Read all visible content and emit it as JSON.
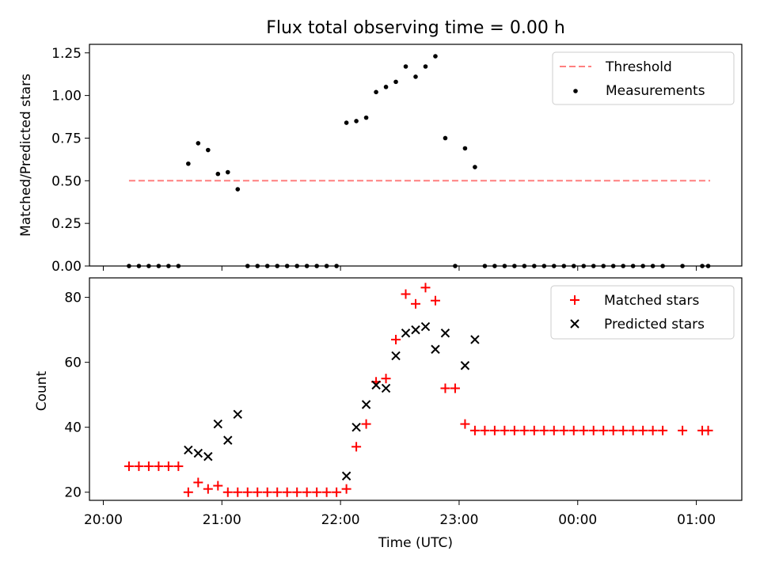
{
  "chart_data": [
    {
      "type": "scatter",
      "title": "Flux total observing time = 0.00 h",
      "xlabel": "",
      "ylabel": "Matched/Predicted stars",
      "ylim": [
        0,
        1.3
      ],
      "yticks": [
        "0.00",
        "0.25",
        "0.50",
        "0.75",
        "1.00",
        "1.25"
      ],
      "legend_position": "upper right",
      "threshold": {
        "name": "Threshold",
        "value": 0.5,
        "x_start": "20:13",
        "x_end": "01:07",
        "color": "#ff7f7f",
        "style": "dashed"
      },
      "series": [
        {
          "name": "Measurements",
          "color": "#000000",
          "marker": "dot",
          "points": [
            [
              "20:13",
              0.0
            ],
            [
              "20:18",
              0.0
            ],
            [
              "20:23",
              0.0
            ],
            [
              "20:28",
              0.0
            ],
            [
              "20:33",
              0.0
            ],
            [
              "20:38",
              0.0
            ],
            [
              "20:43",
              0.6
            ],
            [
              "20:48",
              0.72
            ],
            [
              "20:53",
              0.68
            ],
            [
              "20:58",
              0.54
            ],
            [
              "21:03",
              0.55
            ],
            [
              "21:08",
              0.45
            ],
            [
              "21:13",
              0.0
            ],
            [
              "21:18",
              0.0
            ],
            [
              "21:23",
              0.0
            ],
            [
              "21:28",
              0.0
            ],
            [
              "21:33",
              0.0
            ],
            [
              "21:38",
              0.0
            ],
            [
              "21:43",
              0.0
            ],
            [
              "21:48",
              0.0
            ],
            [
              "21:53",
              0.0
            ],
            [
              "21:58",
              0.0
            ],
            [
              "22:03",
              0.84
            ],
            [
              "22:08",
              0.85
            ],
            [
              "22:13",
              0.87
            ],
            [
              "22:18",
              1.02
            ],
            [
              "22:23",
              1.05
            ],
            [
              "22:28",
              1.08
            ],
            [
              "22:33",
              1.17
            ],
            [
              "22:38",
              1.11
            ],
            [
              "22:43",
              1.17
            ],
            [
              "22:48",
              1.23
            ],
            [
              "22:53",
              0.75
            ],
            [
              "22:58",
              0.0
            ],
            [
              "23:03",
              0.69
            ],
            [
              "23:08",
              0.58
            ],
            [
              "23:13",
              0.0
            ],
            [
              "23:18",
              0.0
            ],
            [
              "23:23",
              0.0
            ],
            [
              "23:28",
              0.0
            ],
            [
              "23:33",
              0.0
            ],
            [
              "23:38",
              0.0
            ],
            [
              "23:43",
              0.0
            ],
            [
              "23:48",
              0.0
            ],
            [
              "23:53",
              0.0
            ],
            [
              "23:58",
              0.0
            ],
            [
              "00:03",
              0.0
            ],
            [
              "00:08",
              0.0
            ],
            [
              "00:13",
              0.0
            ],
            [
              "00:18",
              0.0
            ],
            [
              "00:23",
              0.0
            ],
            [
              "00:28",
              0.0
            ],
            [
              "00:33",
              0.0
            ],
            [
              "00:38",
              0.0
            ],
            [
              "00:43",
              0.0
            ],
            [
              "00:53",
              0.0
            ],
            [
              "01:03",
              0.0
            ],
            [
              "01:06",
              0.0
            ]
          ]
        }
      ]
    },
    {
      "type": "scatter",
      "title": "",
      "xlabel": "Time (UTC)",
      "ylabel": "Count",
      "ylim": [
        17.5,
        86
      ],
      "yticks": [
        "20",
        "40",
        "60",
        "80"
      ],
      "xticks": [
        "20:00",
        "21:00",
        "22:00",
        "23:00",
        "00:00",
        "01:00"
      ],
      "legend_position": "upper right",
      "series": [
        {
          "name": "Matched stars",
          "color": "#ff0000",
          "marker": "plus",
          "points": [
            [
              "20:13",
              28
            ],
            [
              "20:18",
              28
            ],
            [
              "20:23",
              28
            ],
            [
              "20:28",
              28
            ],
            [
              "20:33",
              28
            ],
            [
              "20:38",
              28
            ],
            [
              "20:43",
              20
            ],
            [
              "20:48",
              23
            ],
            [
              "20:53",
              21
            ],
            [
              "20:58",
              22
            ],
            [
              "21:03",
              20
            ],
            [
              "21:08",
              20
            ],
            [
              "21:13",
              20
            ],
            [
              "21:18",
              20
            ],
            [
              "21:23",
              20
            ],
            [
              "21:28",
              20
            ],
            [
              "21:33",
              20
            ],
            [
              "21:38",
              20
            ],
            [
              "21:43",
              20
            ],
            [
              "21:48",
              20
            ],
            [
              "21:53",
              20
            ],
            [
              "21:58",
              20
            ],
            [
              "22:03",
              21
            ],
            [
              "22:08",
              34
            ],
            [
              "22:13",
              41
            ],
            [
              "22:18",
              54
            ],
            [
              "22:23",
              55
            ],
            [
              "22:28",
              67
            ],
            [
              "22:33",
              81
            ],
            [
              "22:38",
              78
            ],
            [
              "22:43",
              83
            ],
            [
              "22:48",
              79
            ],
            [
              "22:53",
              52
            ],
            [
              "22:58",
              52
            ],
            [
              "23:03",
              41
            ],
            [
              "23:08",
              39
            ],
            [
              "23:13",
              39
            ],
            [
              "23:18",
              39
            ],
            [
              "23:23",
              39
            ],
            [
              "23:28",
              39
            ],
            [
              "23:33",
              39
            ],
            [
              "23:38",
              39
            ],
            [
              "23:43",
              39
            ],
            [
              "23:48",
              39
            ],
            [
              "23:53",
              39
            ],
            [
              "23:58",
              39
            ],
            [
              "00:03",
              39
            ],
            [
              "00:08",
              39
            ],
            [
              "00:13",
              39
            ],
            [
              "00:18",
              39
            ],
            [
              "00:23",
              39
            ],
            [
              "00:28",
              39
            ],
            [
              "00:33",
              39
            ],
            [
              "00:38",
              39
            ],
            [
              "00:43",
              39
            ],
            [
              "00:53",
              39
            ],
            [
              "01:03",
              39
            ],
            [
              "01:06",
              39
            ]
          ]
        },
        {
          "name": "Predicted stars",
          "color": "#000000",
          "marker": "x",
          "points": [
            [
              "20:43",
              33
            ],
            [
              "20:48",
              32
            ],
            [
              "20:53",
              31
            ],
            [
              "20:58",
              41
            ],
            [
              "21:03",
              36
            ],
            [
              "21:08",
              44
            ],
            [
              "22:03",
              25
            ],
            [
              "22:08",
              40
            ],
            [
              "22:13",
              47
            ],
            [
              "22:18",
              53
            ],
            [
              "22:23",
              52
            ],
            [
              "22:28",
              62
            ],
            [
              "22:33",
              69
            ],
            [
              "22:38",
              70
            ],
            [
              "22:43",
              71
            ],
            [
              "22:48",
              64
            ],
            [
              "22:53",
              69
            ],
            [
              "23:03",
              59
            ],
            [
              "23:08",
              67
            ]
          ]
        }
      ]
    }
  ]
}
